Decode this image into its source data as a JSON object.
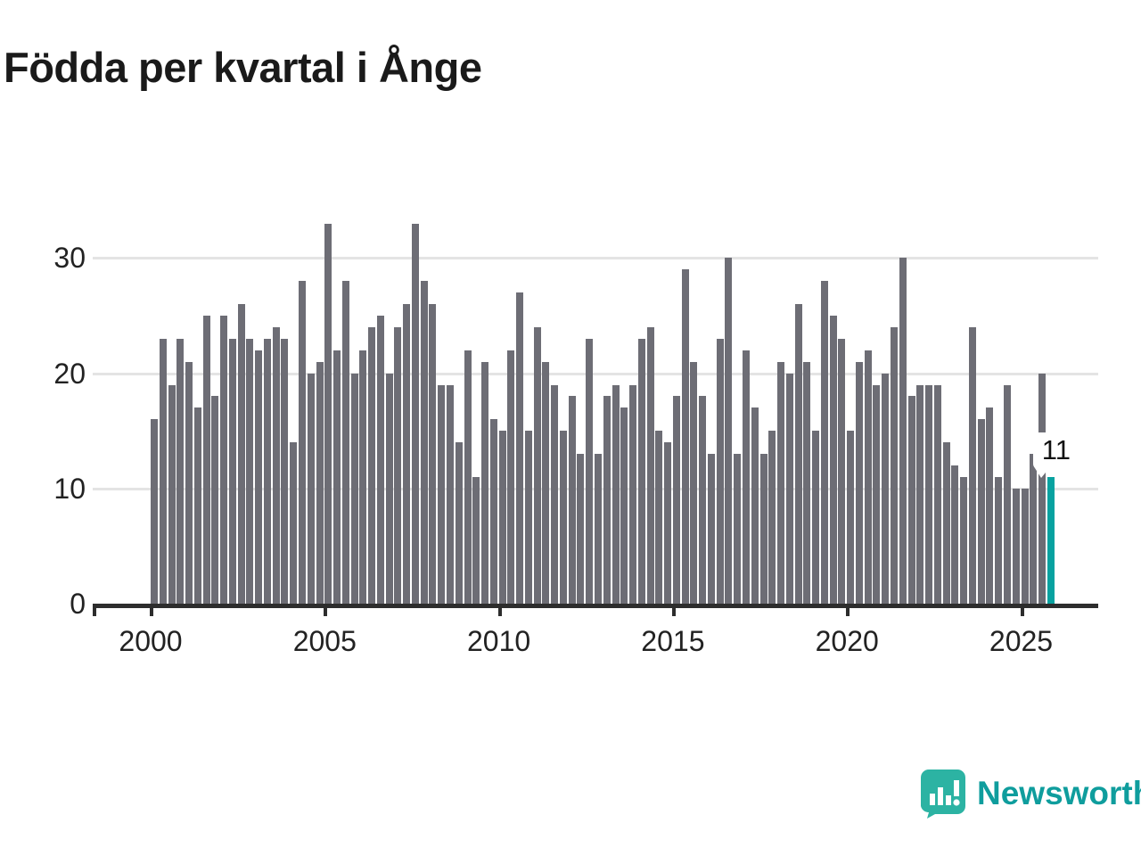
{
  "title": "Födda per kvartal i Ånge",
  "annotation": {
    "label": "11"
  },
  "watermark": {
    "label": "Newsworthy",
    "text_color": "#0f9d9d",
    "badge_color": "#2cb3a3"
  },
  "chart_data": {
    "type": "bar",
    "title": "Födda per kvartal i Ånge",
    "xlabel": "",
    "ylabel": "",
    "x_unit": "quarter",
    "start_year": 2000,
    "end_year": 2025,
    "categories_note": "104 consecutive quarters, 2000 Q1 through 2025 Q4",
    "values": [
      16,
      23,
      19,
      23,
      21,
      17,
      25,
      18,
      25,
      23,
      26,
      23,
      22,
      23,
      24,
      23,
      14,
      28,
      20,
      21,
      33,
      22,
      28,
      20,
      22,
      24,
      25,
      20,
      24,
      26,
      33,
      28,
      26,
      19,
      19,
      14,
      22,
      11,
      21,
      16,
      15,
      22,
      27,
      15,
      24,
      21,
      19,
      15,
      18,
      13,
      23,
      13,
      18,
      19,
      17,
      19,
      23,
      24,
      15,
      14,
      18,
      29,
      21,
      18,
      13,
      23,
      30,
      13,
      22,
      17,
      13,
      15,
      21,
      20,
      26,
      21,
      15,
      28,
      25,
      23,
      15,
      21,
      22,
      19,
      20,
      24,
      30,
      18,
      19,
      19,
      19,
      14,
      12,
      11,
      24,
      16,
      17,
      11,
      19,
      10,
      10,
      13,
      20,
      11
    ],
    "highlight_index": 103,
    "highlight_value": 11,
    "bar_color": "#6d6d75",
    "highlight_color": "#08a2a0",
    "grid_color": "#e4e4e4",
    "axis_color": "#2d2d2d",
    "y_ticks": [
      0,
      10,
      20,
      30
    ],
    "x_tick_labels": [
      "2000",
      "2005",
      "2010",
      "2015",
      "2020",
      "2025"
    ],
    "ylim": [
      0,
      34.5
    ],
    "grid": true,
    "legend": false
  }
}
